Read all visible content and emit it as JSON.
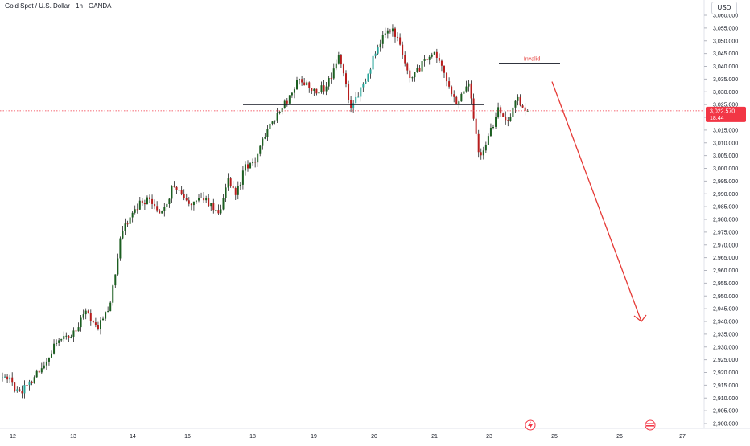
{
  "symbol_title": "Gold Spot / U.S. Dollar · 1h · OANDA",
  "currency": "USD",
  "colors": {
    "up": "#26a69a",
    "up_dark": "#1b5e20",
    "down": "#b71c1c",
    "arrow": "#e53935",
    "last_price_bg": "#f23645",
    "annotation": "#e53935",
    "axis_text": "#131722"
  },
  "chart_data": {
    "type": "candlestick",
    "title": "Gold Spot / U.S. Dollar · 1h · OANDA",
    "xlabel": "",
    "ylabel": "",
    "x_ticks": [
      "12",
      "13",
      "14",
      "16",
      "18",
      "19",
      "20",
      "21",
      "23",
      "25",
      "26",
      "27"
    ],
    "y_ticks": [
      "3,060.000",
      "3,055.000",
      "3,050.000",
      "3,045.000",
      "3,040.000",
      "3,035.000",
      "3,030.000",
      "3,025.000",
      "3,020.000",
      "3,015.000",
      "3,010.000",
      "3,005.000",
      "3,000.000",
      "2,995.000",
      "2,990.000",
      "2,985.000",
      "2,980.000",
      "2,975.000",
      "2,970.000",
      "2,965.000",
      "2,960.000",
      "2,955.000",
      "2,950.000",
      "2,945.000",
      "2,940.000",
      "2,935.000",
      "2,930.000",
      "2,925.000",
      "2,920.000",
      "2,915.000",
      "2,910.000",
      "2,905.000",
      "2,900.000"
    ],
    "ylim": [
      2898,
      3063
    ],
    "grid": false,
    "last_price": {
      "value": "3,022.570",
      "countdown": "18:44"
    },
    "path_keypoints": [
      {
        "date": "Mar 11",
        "price": 2918
      },
      {
        "date": "Mar 11",
        "price": 2914
      },
      {
        "date": "Mar 11",
        "price": 2911
      },
      {
        "date": "Mar 12",
        "price": 2913
      },
      {
        "date": "Mar 12",
        "price": 2921
      },
      {
        "date": "Mar 12",
        "price": 2933
      },
      {
        "date": "Mar 13",
        "price": 2936
      },
      {
        "date": "Mar 13",
        "price": 2944
      },
      {
        "date": "Mar 13",
        "price": 2938
      },
      {
        "date": "Mar 13",
        "price": 2945
      },
      {
        "date": "Mar 13",
        "price": 2975
      },
      {
        "date": "Mar 14",
        "price": 2984
      },
      {
        "date": "Mar 14",
        "price": 2988
      },
      {
        "date": "Mar 14",
        "price": 2982
      },
      {
        "date": "Mar 14",
        "price": 2994
      },
      {
        "date": "Mar 16",
        "price": 2985
      },
      {
        "date": "Mar 16",
        "price": 2988
      },
      {
        "date": "Mar 17",
        "price": 2983
      },
      {
        "date": "Mar 17",
        "price": 2996
      },
      {
        "date": "Mar 17",
        "price": 2990
      },
      {
        "date": "Mar 17",
        "price": 3000
      },
      {
        "date": "Mar 18",
        "price": 3002
      },
      {
        "date": "Mar 18",
        "price": 3016
      },
      {
        "date": "Mar 18",
        "price": 3025
      },
      {
        "date": "Mar 18",
        "price": 3035
      },
      {
        "date": "Mar 19",
        "price": 3030
      },
      {
        "date": "Mar 19",
        "price": 3032
      },
      {
        "date": "Mar 19",
        "price": 3044
      },
      {
        "date": "Mar 19",
        "price": 3024
      },
      {
        "date": "Mar 19",
        "price": 3032
      },
      {
        "date": "Mar 20",
        "price": 3045
      },
      {
        "date": "Mar 20",
        "price": 3056
      },
      {
        "date": "Mar 20",
        "price": 3050
      },
      {
        "date": "Mar 20",
        "price": 3034
      },
      {
        "date": "Mar 20",
        "price": 3042
      },
      {
        "date": "Mar 21",
        "price": 3046
      },
      {
        "date": "Mar 21",
        "price": 3035
      },
      {
        "date": "Mar 21",
        "price": 3026
      },
      {
        "date": "Mar 21",
        "price": 3035
      },
      {
        "date": "Mar 21",
        "price": 3004
      },
      {
        "date": "Mar 23",
        "price": 3014
      },
      {
        "date": "Mar 23",
        "price": 3024
      },
      {
        "date": "Mar 23",
        "price": 3018
      },
      {
        "date": "Mar 24",
        "price": 3028
      },
      {
        "date": "Mar 24",
        "price": 3022.57
      }
    ],
    "annotations": {
      "neckline_price": 3025,
      "invalid_label": "Invalid",
      "invalid_price": 3041,
      "projection_arrow": {
        "from_price": 3034,
        "to_price": 2940
      }
    }
  }
}
